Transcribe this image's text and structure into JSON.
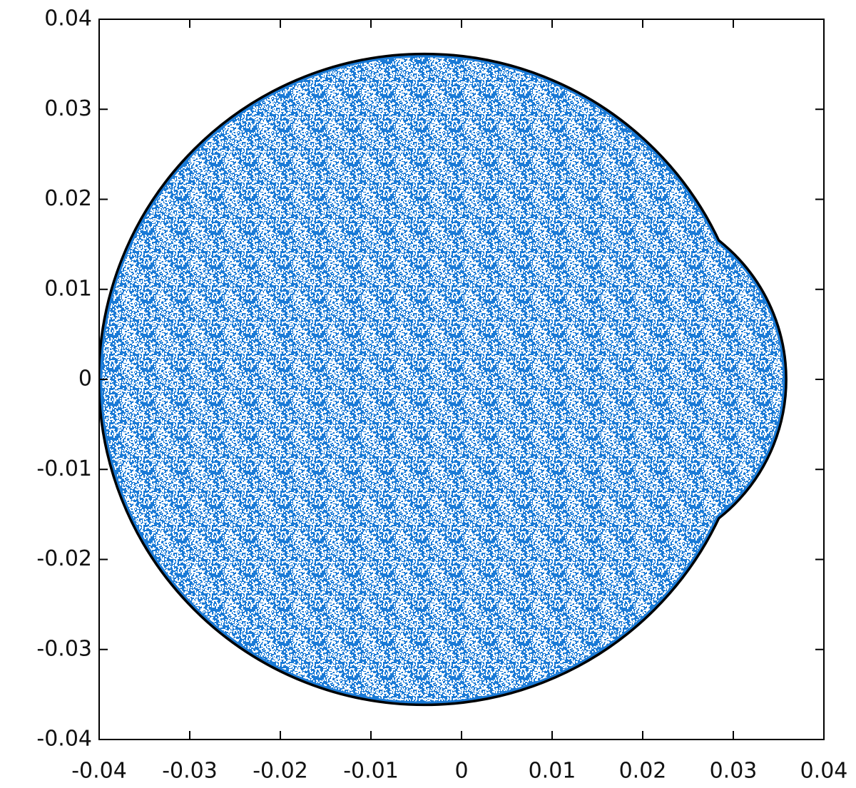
{
  "chart_data": {
    "type": "region",
    "circles": [
      {
        "center": [
          -0.0041,
          0
        ],
        "radius": 0.0358
      },
      {
        "center": [
          0.0163,
          0
        ],
        "radius": 0.0194
      }
    ],
    "color": "#1a7ad6",
    "edge_color": "#000000",
    "xlim": [
      -0.04,
      0.04
    ],
    "xticks": [
      -0.04,
      -0.03,
      -0.02,
      -0.01,
      0,
      0.01,
      0.02,
      0.03,
      0.04
    ],
    "ylim": [
      -0.04,
      0.04
    ],
    "yticks": [
      -0.04,
      -0.03,
      -0.02,
      -0.01,
      0,
      0.01,
      0.02,
      0.03,
      0.04
    ]
  }
}
